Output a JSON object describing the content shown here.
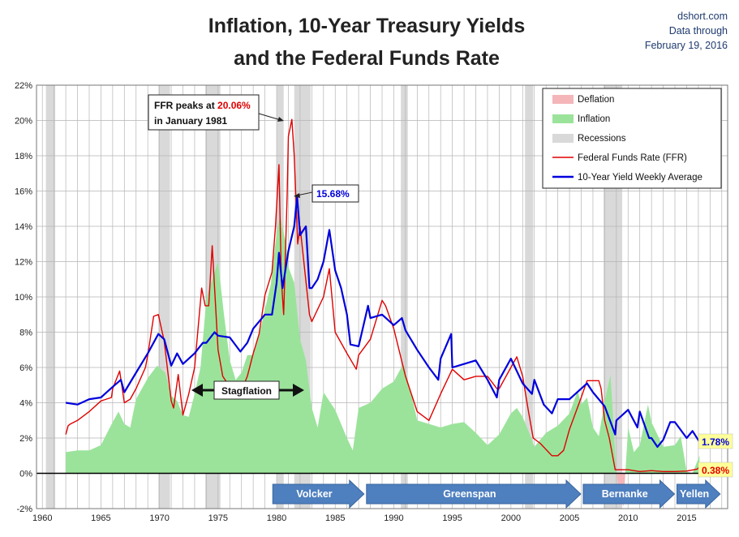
{
  "header": {
    "title_line1": "Inflation, 10-Year Treasury Yields",
    "title_line2": "and the Federal Funds Rate",
    "source_line1": "dshort.com",
    "source_line2": "Data through",
    "source_line3": "February 19, 2016"
  },
  "legend": {
    "items": [
      {
        "label": "Deflation",
        "color": "#f4b6b9",
        "kind": "area"
      },
      {
        "label": "Inflation",
        "color": "#9be39b",
        "kind": "area"
      },
      {
        "label": "Recessions",
        "color": "#d9d9d9",
        "kind": "area"
      },
      {
        "label": "Federal Funds Rate (FFR)",
        "color": "#e00000",
        "kind": "line"
      },
      {
        "label": "10-Year Yield Weekly Average",
        "color": "#0000dd",
        "kind": "line"
      }
    ],
    "placement": "top-right"
  },
  "annotations": {
    "ffr_peak_prefix": "FFR peaks at ",
    "ffr_peak_value": "20.06%",
    "ffr_peak_line2": "in January 1981",
    "yield_peak": "15.68%",
    "stagflation": "Stagflation",
    "last_yield": "1.78%",
    "last_ffr": "0.38%"
  },
  "eras": [
    {
      "label": "Volcker",
      "start": 1979.6,
      "end": 1987.6
    },
    {
      "label": "Greenspan",
      "start": 1987.6,
      "end": 2006.1
    },
    {
      "label": "Bernanke",
      "start": 2006.1,
      "end": 2014.1
    },
    {
      "label": "Yellen",
      "start": 2014.1,
      "end": 2018.0
    }
  ],
  "chart_data": {
    "type": "area",
    "xlabel": "",
    "ylabel": "",
    "xlim": [
      1959.5,
      2018.5
    ],
    "ylim": [
      -2,
      22
    ],
    "x_ticks": [
      "1960",
      "1965",
      "1970",
      "1975",
      "1980",
      "1985",
      "1990",
      "1995",
      "2000",
      "2005",
      "2010",
      "2015"
    ],
    "y_ticks": [
      "-2%",
      "0%",
      "2%",
      "4%",
      "6%",
      "8%",
      "10%",
      "12%",
      "14%",
      "16%",
      "18%",
      "20%",
      "22%"
    ],
    "grid": true,
    "recessions": [
      [
        1960.3,
        1961.1
      ],
      [
        1969.9,
        1970.9
      ],
      [
        1973.9,
        1975.2
      ],
      [
        1980.0,
        1980.6
      ],
      [
        1981.5,
        1982.9
      ],
      [
        1990.6,
        1991.2
      ],
      [
        2001.2,
        2001.9
      ],
      [
        2007.9,
        2009.5
      ]
    ],
    "series": [
      {
        "name": "Inflation",
        "x": [
          1962.0,
          1963.0,
          1964.0,
          1965.0,
          1966.0,
          1966.5,
          1967.0,
          1967.5,
          1968.0,
          1969.0,
          1969.8,
          1970.5,
          1971.0,
          1971.5,
          1972.0,
          1972.5,
          1973.0,
          1973.5,
          1974.0,
          1974.5,
          1975.0,
          1975.5,
          1976.0,
          1976.5,
          1977.0,
          1977.5,
          1978.0,
          1978.5,
          1979.0,
          1979.5,
          1980.0,
          1980.3,
          1980.8,
          1981.0,
          1981.5,
          1982.0,
          1982.5,
          1983.0,
          1983.5,
          1984.0,
          1985.0,
          1986.0,
          1986.5,
          1987.0,
          1988.0,
          1989.0,
          1990.0,
          1990.8,
          1991.5,
          1992.0,
          1993.0,
          1994.0,
          1995.0,
          1996.0,
          1997.0,
          1998.0,
          1999.0,
          2000.0,
          2000.5,
          2001.0,
          2001.8,
          2002.0,
          2003.0,
          2004.0,
          2005.0,
          2005.7,
          2006.0,
          2006.5,
          2007.0,
          2007.5,
          2008.0,
          2008.5,
          2009.0,
          2009.3,
          2009.6,
          2010.0,
          2010.5,
          2011.0,
          2011.7,
          2012.0,
          2013.0,
          2014.0,
          2014.5,
          2015.0,
          2015.5,
          2016.1
        ],
        "values": [
          1.2,
          1.3,
          1.3,
          1.6,
          2.9,
          3.5,
          2.8,
          2.6,
          4.2,
          5.4,
          6.1,
          5.7,
          4.4,
          4.1,
          3.3,
          3.2,
          4.5,
          6.0,
          9.9,
          11.0,
          12.0,
          9.0,
          6.4,
          5.3,
          5.7,
          6.7,
          6.7,
          7.8,
          9.3,
          10.7,
          13.6,
          14.6,
          13.0,
          11.7,
          10.8,
          7.6,
          6.4,
          3.7,
          2.6,
          4.6,
          3.6,
          2.0,
          1.3,
          3.7,
          4.0,
          4.8,
          5.2,
          6.2,
          4.5,
          3.0,
          2.8,
          2.6,
          2.8,
          2.9,
          2.3,
          1.6,
          2.2,
          3.4,
          3.7,
          3.2,
          1.9,
          1.5,
          2.3,
          2.7,
          3.4,
          4.7,
          3.9,
          4.3,
          2.6,
          2.1,
          4.1,
          5.6,
          0.0,
          -1.2,
          -1.9,
          2.6,
          1.2,
          1.6,
          3.9,
          2.9,
          1.5,
          1.6,
          2.1,
          0.1,
          0.0,
          1.0
        ]
      },
      {
        "name": "Federal Funds Rate (FFR)",
        "x": [
          1962.0,
          1962.2,
          1962.4,
          1963.0,
          1964.0,
          1965.0,
          1965.9,
          1966.0,
          1966.6,
          1967.0,
          1967.5,
          1968.0,
          1968.8,
          1969.0,
          1969.5,
          1969.9,
          1970.4,
          1971.0,
          1971.2,
          1971.6,
          1972.0,
          1972.5,
          1973.0,
          1973.6,
          1973.9,
          1974.2,
          1974.5,
          1975.0,
          1975.4,
          1976.0,
          1977.0,
          1977.5,
          1978.0,
          1978.5,
          1979.0,
          1979.6,
          1979.9,
          1980.2,
          1980.4,
          1980.6,
          1980.9,
          1981.0,
          1981.3,
          1981.5,
          1981.8,
          1982.0,
          1982.4,
          1982.8,
          1983.0,
          1984.0,
          1984.5,
          1985.0,
          1986.0,
          1986.8,
          1987.0,
          1988.0,
          1989.0,
          1989.3,
          1990.0,
          1991.0,
          1992.0,
          1993.0,
          1994.0,
          1995.0,
          1996.0,
          1997.0,
          1998.0,
          1998.8,
          1999.0,
          2000.0,
          2000.5,
          2001.0,
          2001.5,
          2001.9,
          2002.5,
          2003.5,
          2004.0,
          2004.5,
          2005.0,
          2006.0,
          2006.5,
          2007.0,
          2007.5,
          2007.7,
          2008.0,
          2008.4,
          2008.9,
          2009.5,
          2010.0,
          2011.0,
          2012.0,
          2013.0,
          2014.0,
          2015.0,
          2015.9,
          2016.1
        ],
        "values": [
          2.2,
          2.7,
          2.8,
          3.0,
          3.5,
          4.1,
          4.3,
          4.8,
          5.8,
          4.0,
          4.2,
          4.8,
          6.0,
          6.7,
          8.9,
          9.0,
          7.5,
          4.1,
          3.7,
          5.6,
          3.3,
          4.5,
          6.0,
          10.5,
          9.5,
          9.5,
          12.9,
          7.0,
          5.5,
          4.9,
          4.7,
          5.5,
          6.8,
          7.9,
          10.1,
          11.4,
          14.0,
          17.5,
          11.0,
          9.0,
          15.8,
          19.1,
          20.06,
          18.0,
          13.0,
          14.0,
          11.5,
          9.0,
          8.6,
          10.0,
          11.6,
          8.0,
          6.8,
          5.9,
          6.7,
          7.6,
          9.8,
          9.5,
          8.2,
          5.5,
          3.5,
          3.0,
          4.5,
          5.9,
          5.3,
          5.5,
          5.5,
          4.8,
          4.8,
          6.0,
          6.6,
          5.5,
          3.5,
          2.0,
          1.7,
          1.0,
          1.0,
          1.3,
          2.5,
          4.3,
          5.25,
          5.25,
          5.25,
          4.8,
          3.0,
          2.0,
          0.2,
          0.2,
          0.2,
          0.1,
          0.15,
          0.1,
          0.1,
          0.13,
          0.24,
          0.38
        ]
      },
      {
        "name": "10-Year Yield Weekly Average",
        "x": [
          1962.0,
          1963.0,
          1964.0,
          1965.0,
          1966.0,
          1966.7,
          1967.0,
          1968.0,
          1969.0,
          1969.9,
          1970.4,
          1971.0,
          1971.5,
          1972.0,
          1973.0,
          1973.7,
          1974.0,
          1974.7,
          1975.0,
          1976.0,
          1976.9,
          1977.5,
          1978.0,
          1979.0,
          1979.6,
          1980.0,
          1980.2,
          1980.5,
          1981.0,
          1981.5,
          1981.75,
          1982.0,
          1982.5,
          1982.8,
          1983.0,
          1983.5,
          1984.0,
          1984.5,
          1985.0,
          1985.5,
          1986.0,
          1986.3,
          1987.0,
          1987.8,
          1988.0,
          1989.0,
          1990.0,
          1990.7,
          1991.0,
          1992.0,
          1993.0,
          1993.8,
          1994.0,
          1994.9,
          1995.0,
          1996.0,
          1997.0,
          1998.0,
          1998.8,
          1999.0,
          2000.0,
          2001.0,
          2001.8,
          2002.0,
          2002.8,
          2003.5,
          2004.0,
          2005.0,
          2006.0,
          2006.5,
          2007.0,
          2008.0,
          2008.9,
          2009.0,
          2010.0,
          2010.8,
          2011.0,
          2011.8,
          2012.0,
          2012.5,
          2013.0,
          2013.6,
          2014.0,
          2015.0,
          2015.5,
          2016.1
        ],
        "values": [
          4.0,
          3.9,
          4.2,
          4.3,
          4.9,
          5.3,
          4.6,
          5.7,
          6.8,
          7.9,
          7.6,
          6.1,
          6.8,
          6.2,
          6.8,
          7.4,
          7.4,
          8.0,
          7.8,
          7.7,
          6.9,
          7.4,
          8.2,
          9.0,
          9.0,
          10.8,
          12.5,
          10.5,
          12.6,
          14.0,
          15.68,
          13.5,
          14.0,
          10.5,
          10.5,
          11.0,
          12.0,
          13.8,
          11.5,
          10.5,
          9.0,
          7.3,
          7.2,
          9.5,
          8.8,
          9.0,
          8.4,
          8.8,
          8.1,
          7.0,
          6.0,
          5.3,
          6.5,
          7.9,
          6.0,
          6.2,
          6.4,
          5.3,
          4.3,
          5.3,
          6.5,
          5.1,
          4.5,
          5.3,
          3.9,
          3.4,
          4.2,
          4.2,
          4.8,
          5.1,
          4.6,
          3.8,
          2.2,
          3.0,
          3.6,
          2.6,
          3.5,
          2.0,
          2.0,
          1.5,
          1.9,
          2.9,
          2.9,
          2.0,
          2.4,
          1.78
        ]
      }
    ]
  }
}
